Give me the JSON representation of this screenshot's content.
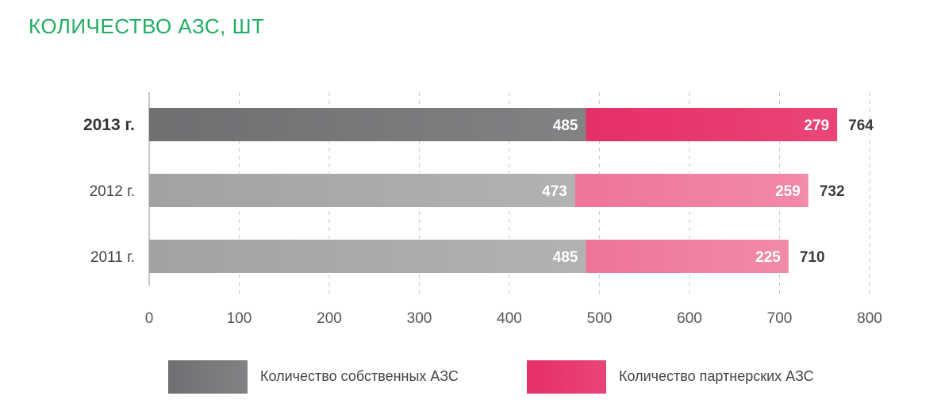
{
  "title": "КОЛИЧЕСТВО АЗС, ШТ",
  "colors": {
    "title": "#1fae5f",
    "own_dark": "#78787b",
    "own_light": "#a9a9ab",
    "partner_dark": "#e8376e",
    "partner_light": "#ef7fa0"
  },
  "chart_data": {
    "type": "bar",
    "orientation": "horizontal",
    "stacked": true,
    "title": "КОЛИЧЕСТВО АЗС, ШТ",
    "categories": [
      "2013 г.",
      "2012 г.",
      "2011 г."
    ],
    "highlight_category": "2013 г.",
    "series": [
      {
        "name": "Количество собственных АЗС",
        "values": [
          485,
          473,
          485
        ]
      },
      {
        "name": "Количество партнерских АЗС",
        "values": [
          279,
          259,
          225
        ]
      }
    ],
    "totals": [
      764,
      732,
      710
    ],
    "xlim": [
      0,
      800
    ],
    "xticks": [
      0,
      100,
      200,
      300,
      400,
      500,
      600,
      700,
      800
    ],
    "grid": "vertical-dashed",
    "legend_position": "bottom"
  }
}
